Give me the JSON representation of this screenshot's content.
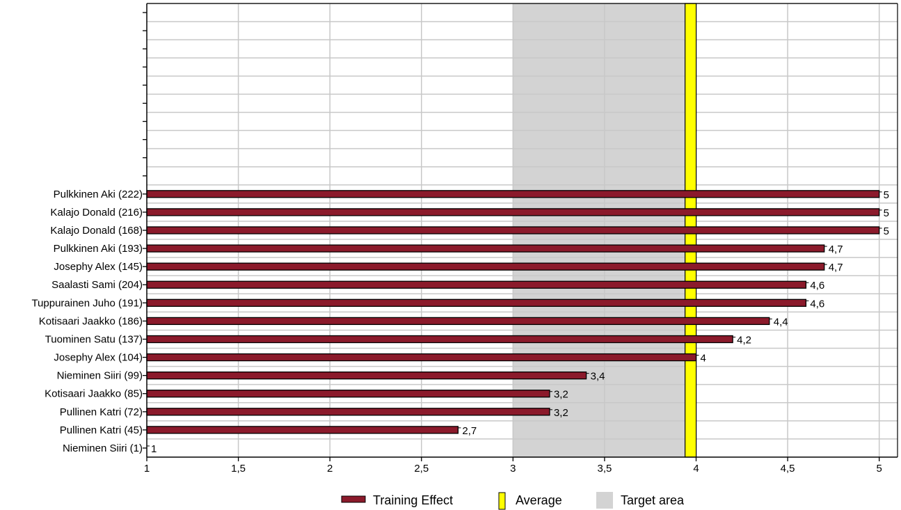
{
  "chart_data": {
    "type": "bar",
    "orientation": "horizontal",
    "categories": [
      "Pulkkinen Aki (222)",
      "Kalajo Donald (216)",
      "Kalajo Donald (168)",
      "Pulkkinen Aki (193)",
      "Josephy Alex (145)",
      "Saalasti Sami (204)",
      "Tuppurainen Juho (191)",
      "Kotisaari Jaakko (186)",
      "Tuominen Satu (137)",
      "Josephy Alex (104)",
      "Nieminen Siiri (99)",
      "Kotisaari Jaakko (85)",
      "Pullinen Katri (72)",
      "Pullinen Katri (45)",
      "Nieminen Siiri (1)"
    ],
    "series": [
      {
        "name": "Training Effect",
        "color": "#8b1a2b",
        "values": [
          5,
          5,
          5,
          4.7,
          4.7,
          4.6,
          4.6,
          4.4,
          4.2,
          4,
          3.4,
          3.2,
          3.2,
          2.7,
          1
        ],
        "value_labels": [
          "5",
          "5",
          "5",
          "4,7",
          "4,7",
          "4,6",
          "4,6",
          "4,4",
          "4,2",
          "4",
          "3,4",
          "3,2",
          "3,2",
          "2,7",
          "1"
        ]
      }
    ],
    "average": {
      "name": "Average",
      "value": 3.97,
      "color": "#ffff00"
    },
    "target_area": {
      "name": "Target area",
      "from": 3,
      "to": 3.95,
      "color": "#d3d3d3"
    },
    "x_ticks": [
      1,
      1.5,
      2,
      2.5,
      3,
      3.5,
      4,
      4.5,
      5
    ],
    "x_tick_labels": [
      "1",
      "1,5",
      "2",
      "2,5",
      "3",
      "3,5",
      "4",
      "4,5",
      "5"
    ],
    "xlim": [
      1,
      5.1
    ],
    "empty_slots_above": 10,
    "grid": true,
    "legend_position": "bottom-center",
    "title": "",
    "xlabel": "",
    "ylabel": ""
  },
  "legend": {
    "items": [
      {
        "key": "series",
        "label": "Training Effect"
      },
      {
        "key": "average",
        "label": "Average"
      },
      {
        "key": "target",
        "label": "Target area"
      }
    ]
  }
}
